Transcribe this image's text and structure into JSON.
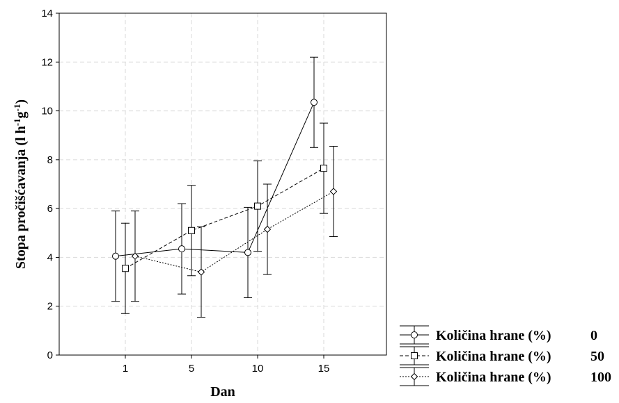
{
  "chart_data": {
    "type": "line",
    "title": "",
    "xlabel": "Dan",
    "ylabel": "Stopa pročišćavanja (l h-1g-1)",
    "ylabel_parts": {
      "main": "Stopa pročišćavanja (l h",
      "sup1": "-1",
      "mid": "g",
      "sup2": "-1",
      "end": ")"
    },
    "categories": [
      "1",
      "5",
      "10",
      "15"
    ],
    "ylim": [
      0,
      14
    ],
    "yticks": [
      "0",
      "2",
      "4",
      "6",
      "8",
      "10",
      "12",
      "14"
    ],
    "grid": true,
    "legend_position": "bottom-right",
    "series": [
      {
        "name": "Količina hrane (%)",
        "level": "0",
        "marker": "circle",
        "line_style": "solid",
        "values": [
          4.05,
          4.35,
          4.2,
          10.35
        ],
        "ci_low": [
          2.2,
          2.5,
          2.35,
          8.5
        ],
        "ci_high": [
          5.9,
          6.2,
          6.05,
          12.2
        ]
      },
      {
        "name": "Količina hrane (%)",
        "level": "50",
        "marker": "square",
        "line_style": "dashed",
        "values": [
          3.55,
          5.1,
          6.1,
          7.65
        ],
        "ci_low": [
          1.7,
          3.25,
          4.25,
          5.8
        ],
        "ci_high": [
          5.4,
          6.95,
          7.95,
          9.5
        ]
      },
      {
        "name": "Količina hrane (%)",
        "level": "100",
        "marker": "diamond",
        "line_style": "dotted",
        "values": [
          4.05,
          3.4,
          5.15,
          6.7
        ],
        "ci_low": [
          2.2,
          1.55,
          3.3,
          4.85
        ],
        "ci_high": [
          5.9,
          5.25,
          7.0,
          8.55
        ]
      }
    ]
  }
}
